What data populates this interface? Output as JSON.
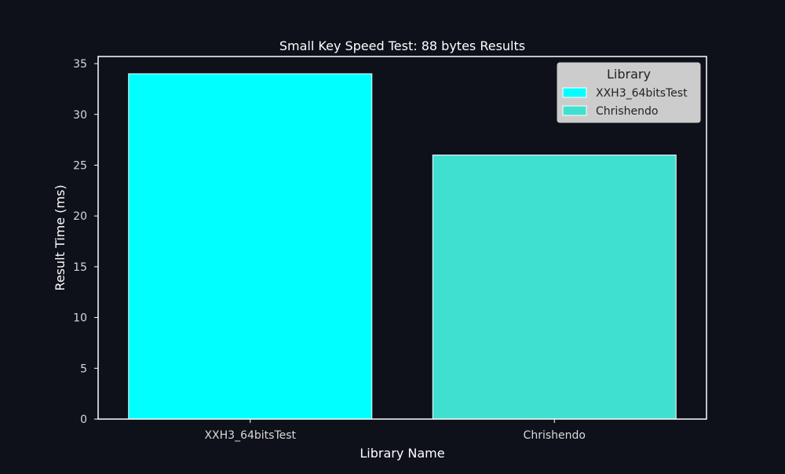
{
  "chart_data": {
    "type": "bar",
    "title": "Small Key Speed Test: 88 bytes Results",
    "xlabel": "Library Name",
    "ylabel": "Result Time (ms)",
    "categories": [
      "XXH3_64bitsTest",
      "Chrishendo"
    ],
    "values": [
      34,
      26
    ],
    "bar_colors": [
      "#00ffff",
      "#40e0d0"
    ],
    "ylim": [
      0,
      35.7
    ],
    "yticks": [
      0,
      5,
      10,
      15,
      20,
      25,
      30,
      35
    ],
    "grid": false,
    "legend": {
      "title": "Library",
      "placement": "top-right",
      "entries": [
        {
          "label": "XXH3_64bitsTest",
          "color": "#00ffff"
        },
        {
          "label": "Chrishendo",
          "color": "#40e0d0"
        }
      ]
    },
    "colors": {
      "background": "#0e101a",
      "axes": "#ffffff",
      "text": "#ffffff",
      "tick_text": "#d9d9d9",
      "legend_bg": "#cccccc",
      "legend_text": "#222222"
    }
  }
}
